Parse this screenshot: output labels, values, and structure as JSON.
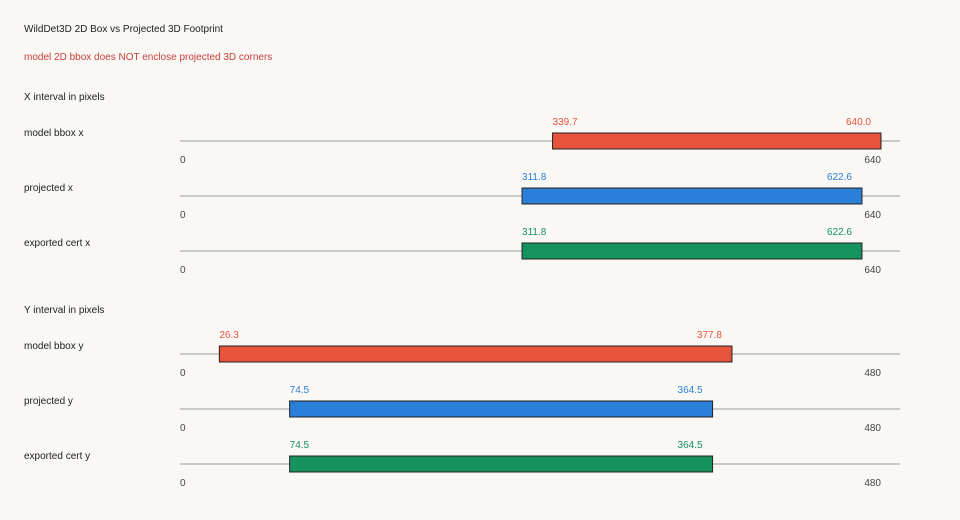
{
  "title": "WildDet3D 2D Box vs Projected 3D Footprint",
  "warning": "model 2D bbox does NOT enclose projected 3D corners",
  "colors": {
    "model": "#e8533c",
    "projected": "#2b7fd8",
    "exported": "#16935f",
    "axis": "#bbbbbb"
  },
  "chart_data": [
    {
      "type": "bar",
      "title": "X interval in pixels",
      "xlim": [
        0,
        640
      ],
      "tick_labels": [
        "0",
        "640"
      ],
      "series": [
        {
          "name": "model bbox x",
          "start": 339.7,
          "end": 640.0,
          "start_label": "339.7",
          "end_label": "640.0",
          "color_key": "model"
        },
        {
          "name": "projected x",
          "start": 311.8,
          "end": 622.6,
          "start_label": "311.8",
          "end_label": "622.6",
          "color_key": "projected"
        },
        {
          "name": "exported cert x",
          "start": 311.8,
          "end": 622.6,
          "start_label": "311.8",
          "end_label": "622.6",
          "color_key": "exported"
        }
      ]
    },
    {
      "type": "bar",
      "title": "Y interval in pixels",
      "xlim": [
        0,
        480
      ],
      "tick_labels": [
        "0",
        "480"
      ],
      "series": [
        {
          "name": "model bbox y",
          "start": 26.3,
          "end": 377.8,
          "start_label": "26.3",
          "end_label": "377.8",
          "color_key": "model"
        },
        {
          "name": "projected y",
          "start": 74.5,
          "end": 364.5,
          "start_label": "74.5",
          "end_label": "364.5",
          "color_key": "projected"
        },
        {
          "name": "exported cert y",
          "start": 74.5,
          "end": 364.5,
          "start_label": "74.5",
          "end_label": "364.5",
          "color_key": "exported"
        }
      ]
    }
  ]
}
